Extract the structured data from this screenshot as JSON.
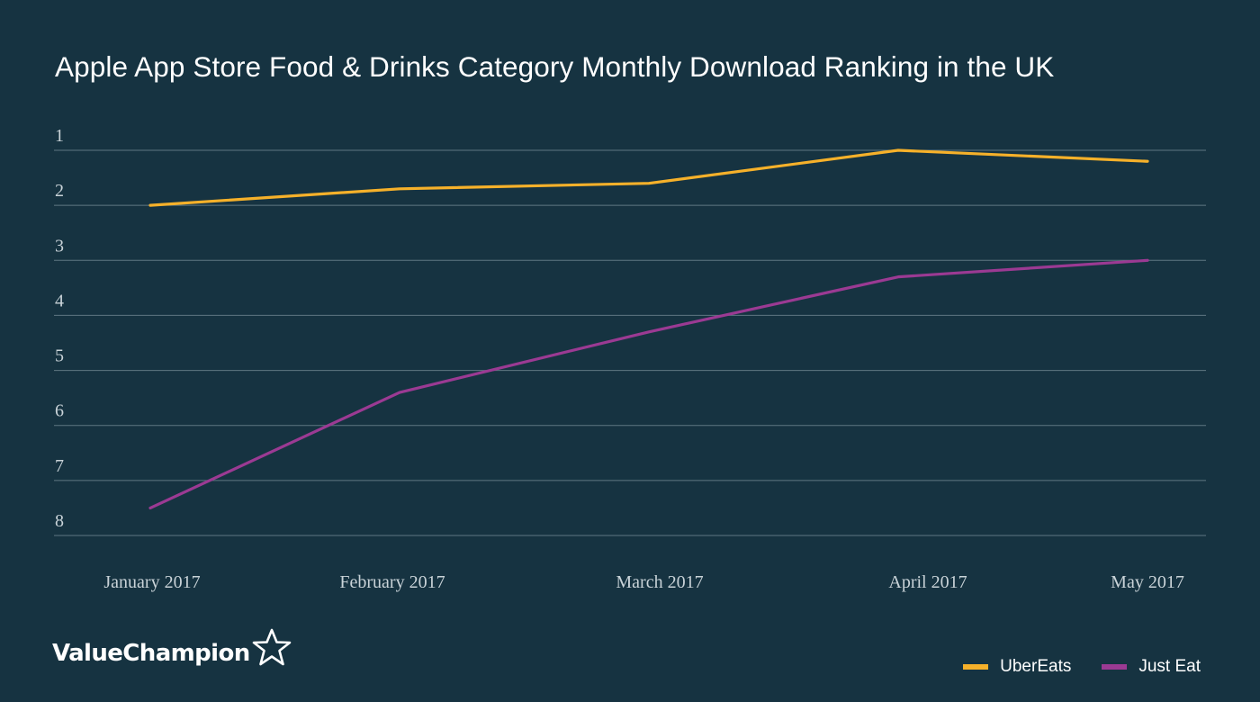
{
  "title": "Apple App Store Food & Drinks Category Monthly Download Ranking in the UK",
  "chart_data": {
    "type": "line",
    "title": "Apple App Store Food & Drinks Category Monthly Download Ranking in the UK",
    "categories": [
      "January 2017",
      "February 2017",
      "March 2017",
      "April 2017",
      "May 2017"
    ],
    "series": [
      {
        "name": "UberEats",
        "color": "#f6b12a",
        "values": [
          2.0,
          1.7,
          1.6,
          1.0,
          1.2
        ]
      },
      {
        "name": "Just Eat",
        "color": "#9b3a93",
        "values": [
          7.5,
          5.4,
          4.3,
          3.3,
          3.0
        ]
      }
    ],
    "yticks": [
      "1",
      "2",
      "3",
      "4",
      "5",
      "6",
      "7",
      "8"
    ],
    "ylim": [
      1,
      8
    ],
    "y_inverted": true,
    "grid": true,
    "legend_position": "bottom-right",
    "background": "#163341",
    "gridline_color": "#5f7782"
  },
  "branding": {
    "logo_text": "ValueChampion",
    "logo_icon": "star-outline-icon"
  },
  "legend": [
    {
      "label": "UberEats",
      "color": "#f6b12a"
    },
    {
      "label": "Just Eat",
      "color": "#9b3a93"
    }
  ]
}
